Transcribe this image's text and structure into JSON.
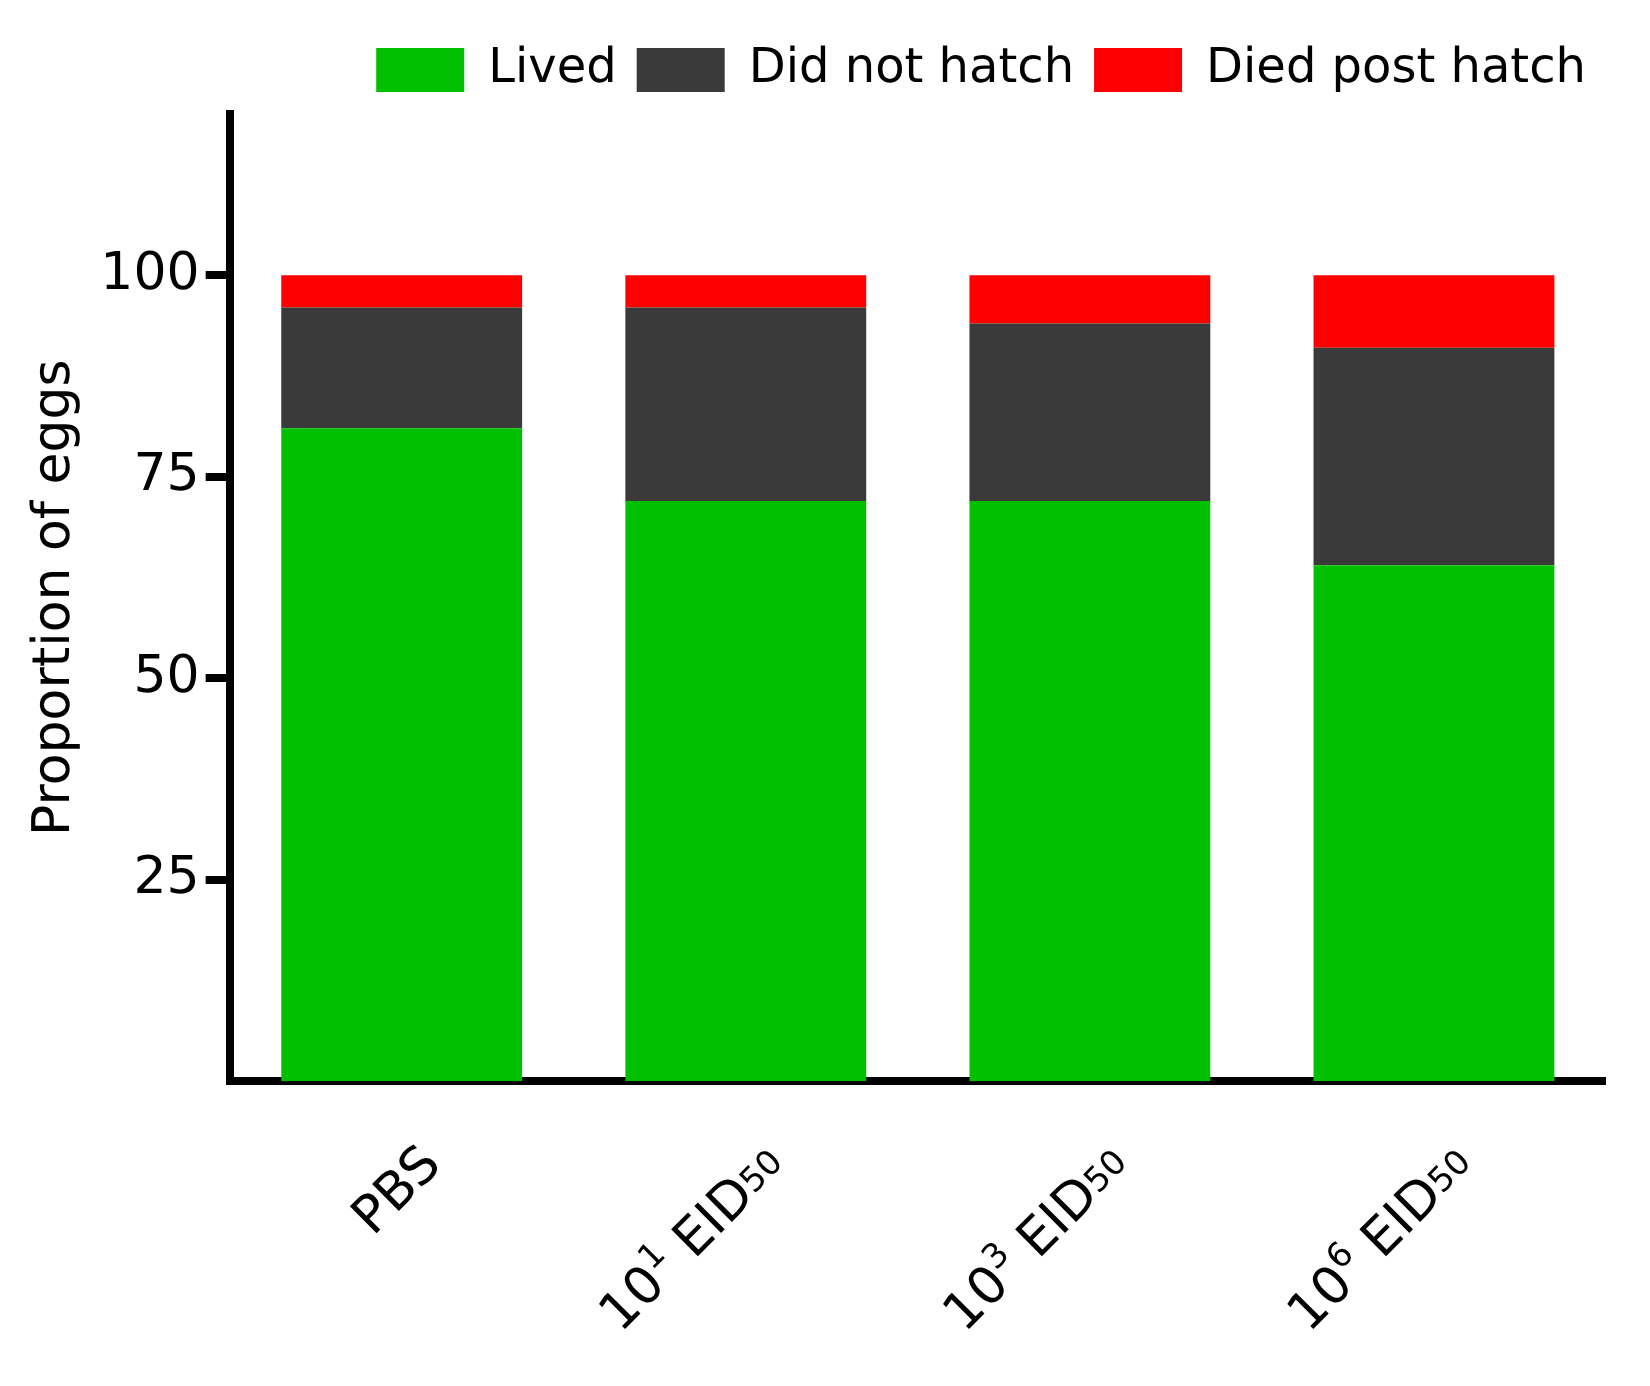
{
  "chart_data": {
    "type": "bar",
    "stacked": true,
    "ylabel": "Proportion of eggs",
    "categories": [
      "PBS",
      "10$^{1}$ EID$_{50}$",
      "10$^{3}$ EID$_{50}$",
      "10$^{6}$ EID$_{50}$"
    ],
    "series": [
      {
        "name": "Lived",
        "color": "#00c000",
        "values": [
          81,
          72,
          72,
          64
        ]
      },
      {
        "name": "Did not hatch",
        "color": "#3a3a3a",
        "values": [
          15,
          24,
          22,
          27
        ]
      },
      {
        "name": "Died post hatch",
        "color": "#ff0000",
        "values": [
          4,
          4,
          6,
          9
        ]
      }
    ],
    "ylim": [
      0,
      120
    ],
    "yticks": [
      25,
      50,
      75,
      100
    ],
    "grid": false,
    "legend": "top right"
  }
}
